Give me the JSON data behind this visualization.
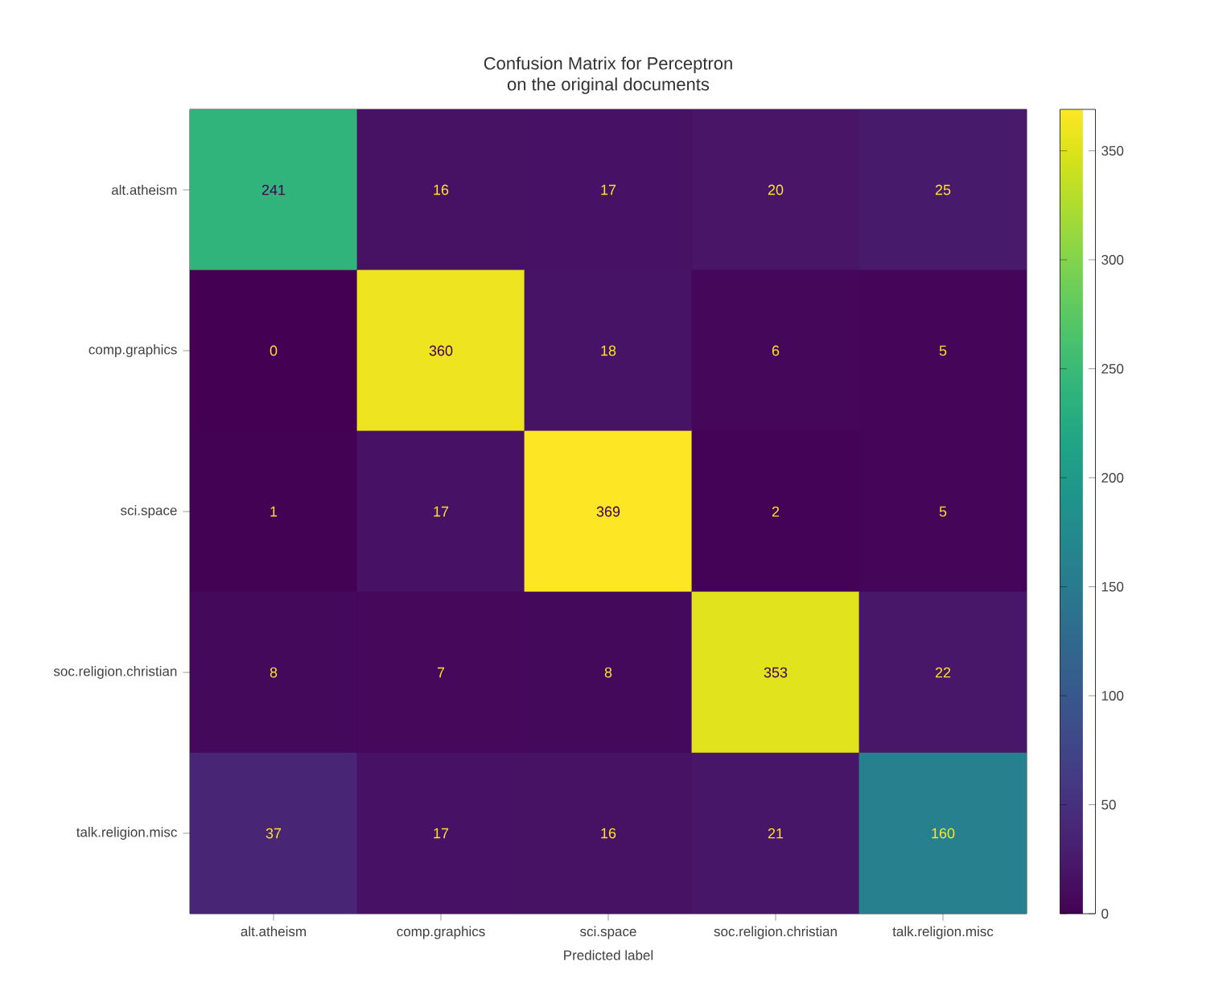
{
  "chart_data": {
    "type": "heatmap",
    "title": "Confusion Matrix for Perceptron",
    "subtitle": "on the original documents",
    "xlabel": "Predicted label",
    "categories": [
      "alt.atheism",
      "comp.graphics",
      "sci.space",
      "soc.religion.christian",
      "talk.religion.misc"
    ],
    "y_categories": [
      "alt.atheism",
      "comp.graphics",
      "sci.space",
      "soc.religion.christian",
      "talk.religion.misc"
    ],
    "cells": [
      [
        241,
        16,
        17,
        20,
        25
      ],
      [
        0,
        360,
        18,
        6,
        5
      ],
      [
        1,
        17,
        369,
        2,
        5
      ],
      [
        8,
        7,
        8,
        353,
        22
      ],
      [
        37,
        17,
        16,
        21,
        160
      ]
    ],
    "clim": [
      0,
      369
    ],
    "cticks": [
      0,
      50,
      100,
      150,
      200,
      250,
      300,
      350
    ],
    "data_labels": true
  }
}
